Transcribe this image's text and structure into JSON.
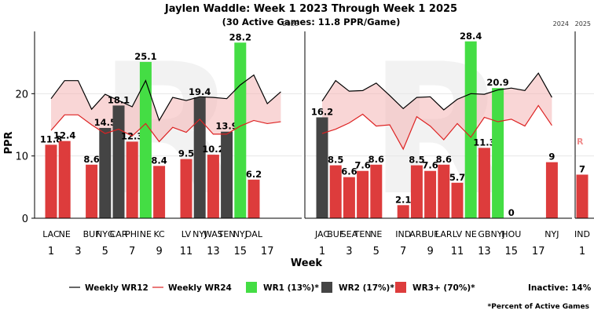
{
  "chart_data": {
    "type": "bar",
    "title": "Jaylen Waddle: Week 1 2023 Through Week 1 2025",
    "subtitle": "(30 Active Games: 11.8 PPR/Game)",
    "ylabel": "PPR",
    "xlabel": "Week",
    "ylim": [
      0,
      30
    ],
    "yticks": [
      0,
      10,
      20
    ],
    "watermark": "R",
    "edge_mark": "R",
    "seasons": [
      {
        "label": "2023",
        "weeks": 18,
        "xticks": [
          1,
          3,
          5,
          7,
          9,
          11,
          13,
          15,
          17
        ],
        "bars": [
          {
            "week": 1,
            "opp": "LAC",
            "ppr": 11.8,
            "cat": "WR3+"
          },
          {
            "week": 2,
            "opp": "NE",
            "ppr": 12.4,
            "cat": "WR3+"
          },
          {
            "week": 4,
            "opp": "BUF",
            "ppr": 8.6,
            "cat": "WR3+"
          },
          {
            "week": 5,
            "opp": "NYG",
            "ppr": 14.5,
            "cat": "WR2"
          },
          {
            "week": 6,
            "opp": "CAR",
            "ppr": 18.1,
            "cat": "WR2"
          },
          {
            "week": 7,
            "opp": "PHI",
            "ppr": 12.3,
            "cat": "WR3+"
          },
          {
            "week": 8,
            "opp": "NE",
            "ppr": 25.1,
            "cat": "WR1"
          },
          {
            "week": 9,
            "opp": "KC",
            "ppr": 8.4,
            "cat": "WR3+"
          },
          {
            "week": 11,
            "opp": "LV",
            "ppr": 9.5,
            "cat": "WR3+"
          },
          {
            "week": 12,
            "opp": "NYJ",
            "ppr": 19.4,
            "cat": "WR2"
          },
          {
            "week": 13,
            "opp": "WAS",
            "ppr": 10.2,
            "cat": "WR3+"
          },
          {
            "week": 14,
            "opp": "TEN",
            "ppr": 13.9,
            "cat": "WR2"
          },
          {
            "week": 15,
            "opp": "NYJ",
            "ppr": 28.2,
            "cat": "WR1"
          },
          {
            "week": 16,
            "opp": "DAL",
            "ppr": 6.2,
            "cat": "WR3+"
          }
        ],
        "wr12": [
          [
            1,
            19.2
          ],
          [
            2,
            22.1
          ],
          [
            3,
            22.1
          ],
          [
            4,
            17.5
          ],
          [
            5,
            19.9
          ],
          [
            6,
            18.9
          ],
          [
            7,
            17.9
          ],
          [
            8,
            22.1
          ],
          [
            9,
            15.7
          ],
          [
            10,
            19.4
          ],
          [
            11,
            18.9
          ],
          [
            12,
            19.5
          ],
          [
            13,
            19.4
          ],
          [
            14,
            19.2
          ],
          [
            15,
            21.4
          ],
          [
            16,
            23.0
          ],
          [
            17,
            18.4
          ],
          [
            18,
            20.3
          ]
        ],
        "wr24": [
          [
            1,
            14.1
          ],
          [
            2,
            16.6
          ],
          [
            3,
            16.6
          ],
          [
            4,
            15.0
          ],
          [
            5,
            13.6
          ],
          [
            6,
            14.3
          ],
          [
            7,
            13.2
          ],
          [
            8,
            15.2
          ],
          [
            9,
            12.3
          ],
          [
            10,
            14.6
          ],
          [
            11,
            13.8
          ],
          [
            12,
            15.9
          ],
          [
            13,
            13.5
          ],
          [
            14,
            13.5
          ],
          [
            15,
            14.8
          ],
          [
            16,
            15.7
          ],
          [
            17,
            15.2
          ],
          [
            18,
            15.5
          ]
        ]
      },
      {
        "label": "2024",
        "weeks": 18,
        "xticks": [
          1,
          3,
          5,
          7,
          9,
          11,
          13,
          15,
          17
        ],
        "bars": [
          {
            "week": 1,
            "opp": "JAC",
            "ppr": 16.2,
            "cat": "WR2"
          },
          {
            "week": 2,
            "opp": "BUF",
            "ppr": 8.5,
            "cat": "WR3+"
          },
          {
            "week": 3,
            "opp": "SEA",
            "ppr": 6.6,
            "cat": "WR3+"
          },
          {
            "week": 4,
            "opp": "TEN",
            "ppr": 7.6,
            "cat": "WR3+"
          },
          {
            "week": 5,
            "opp": "NE",
            "ppr": 8.6,
            "cat": "WR3+"
          },
          {
            "week": 7,
            "opp": "IND",
            "ppr": 2.1,
            "cat": "WR3+"
          },
          {
            "week": 8,
            "opp": "ARI",
            "ppr": 8.5,
            "cat": "WR3+"
          },
          {
            "week": 9,
            "opp": "BUF",
            "ppr": 7.6,
            "cat": "WR3+"
          },
          {
            "week": 10,
            "opp": "LAR",
            "ppr": 8.6,
            "cat": "WR3+"
          },
          {
            "week": 11,
            "opp": "LV",
            "ppr": 5.7,
            "cat": "WR3+"
          },
          {
            "week": 12,
            "opp": "NE",
            "ppr": 28.4,
            "cat": "WR1"
          },
          {
            "week": 13,
            "opp": "GB",
            "ppr": 11.3,
            "cat": "WR3+"
          },
          {
            "week": 14,
            "opp": "NYJ",
            "ppr": 20.9,
            "cat": "WR1"
          },
          {
            "week": 15,
            "opp": "HOU",
            "ppr": 0,
            "cat": "WR3+"
          },
          {
            "week": 18,
            "opp": "NYJ",
            "ppr": 9,
            "cat": "WR3+"
          }
        ],
        "wr12": [
          [
            1,
            18.8
          ],
          [
            2,
            22.1
          ],
          [
            3,
            20.4
          ],
          [
            4,
            20.5
          ],
          [
            5,
            21.7
          ],
          [
            6,
            19.7
          ],
          [
            7,
            17.6
          ],
          [
            8,
            19.4
          ],
          [
            9,
            19.5
          ],
          [
            10,
            17.4
          ],
          [
            11,
            19.1
          ],
          [
            12,
            20.0
          ],
          [
            13,
            19.9
          ],
          [
            14,
            20.6
          ],
          [
            15,
            20.9
          ],
          [
            16,
            20.5
          ],
          [
            17,
            23.3
          ],
          [
            18,
            19.4
          ]
        ],
        "wr24": [
          [
            1,
            13.6
          ],
          [
            2,
            14.3
          ],
          [
            3,
            15.3
          ],
          [
            4,
            16.7
          ],
          [
            5,
            14.8
          ],
          [
            6,
            15.0
          ],
          [
            7,
            11.1
          ],
          [
            8,
            16.3
          ],
          [
            9,
            14.8
          ],
          [
            10,
            12.6
          ],
          [
            11,
            15.2
          ],
          [
            12,
            13.0
          ],
          [
            13,
            16.2
          ],
          [
            14,
            15.5
          ],
          [
            15,
            15.9
          ],
          [
            16,
            14.8
          ],
          [
            17,
            18.1
          ],
          [
            18,
            14.9
          ]
        ]
      },
      {
        "label": "2025",
        "weeks": 1,
        "xticks": [
          1
        ],
        "bars": [
          {
            "week": 1,
            "opp": "IND",
            "ppr": 7,
            "cat": "WR3+"
          }
        ],
        "wr12": [],
        "wr24": []
      }
    ],
    "colors": {
      "WR1": "#44dd44",
      "WR2": "#444444",
      "WR3+": "#dd3c3c",
      "wr12": "#000000",
      "wr24": "#dd2222",
      "band": "#f4b4b4"
    },
    "legend": {
      "wr12": "Weekly WR12",
      "wr24": "Weekly WR24",
      "wr1": "WR1 (13%)*",
      "wr2": "WR2 (17%)*",
      "wr3": "WR3+ (70%)*",
      "inactive": "Inactive: 14%"
    },
    "footnote": "*Percent of Active Games"
  }
}
